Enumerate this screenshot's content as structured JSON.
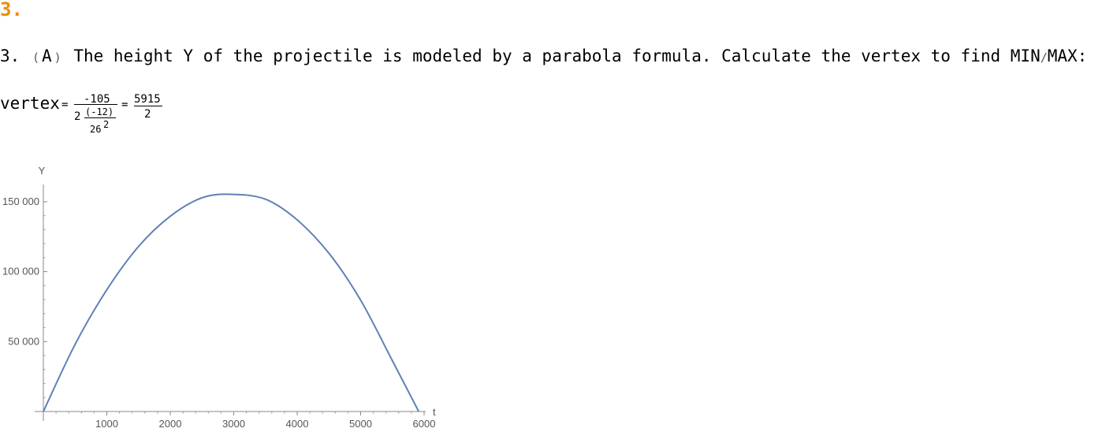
{
  "section": {
    "number": "3."
  },
  "problem": {
    "prefix": "3.",
    "part_open": "(",
    "part": "A",
    "part_close": ")",
    "text": "The height Y of the projectile is modeled by a parabola formula. Calculate the vertex to find MIN",
    "slash": "/",
    "tail": "MAX:"
  },
  "vertex": {
    "label": "vertex",
    "eq": "=",
    "numerator": "-105",
    "coef": "2",
    "inner_num": "(-12)",
    "inner_den": "26",
    "inner_exp": "2",
    "eq2": "=",
    "result_num": "5915",
    "result_den": "2"
  },
  "chart_data": {
    "type": "line",
    "xlabel": "t",
    "ylabel": "Y",
    "xlim": [
      0,
      6000
    ],
    "ylim": [
      0,
      155000
    ],
    "x_ticks": [
      1000,
      2000,
      3000,
      4000,
      5000,
      6000
    ],
    "x_tick_labels": [
      "1000",
      "2000",
      "3000",
      "4000",
      "5000",
      "6000"
    ],
    "y_ticks": [
      50000,
      100000,
      150000
    ],
    "y_tick_labels": [
      "50 000",
      "100 000",
      "150 000"
    ],
    "grid": false,
    "color": "#5e81b5",
    "series": [
      {
        "x": [
          0,
          500,
          1000,
          1500,
          2000,
          2500,
          2957.5,
          3500,
          4000,
          4500,
          5000,
          5500,
          5915
        ],
        "values": [
          0,
          48000,
          87000,
          118000,
          139600,
          152800,
          155300,
          151800,
          137000,
          113100,
          79600,
          36300,
          0
        ]
      }
    ]
  }
}
